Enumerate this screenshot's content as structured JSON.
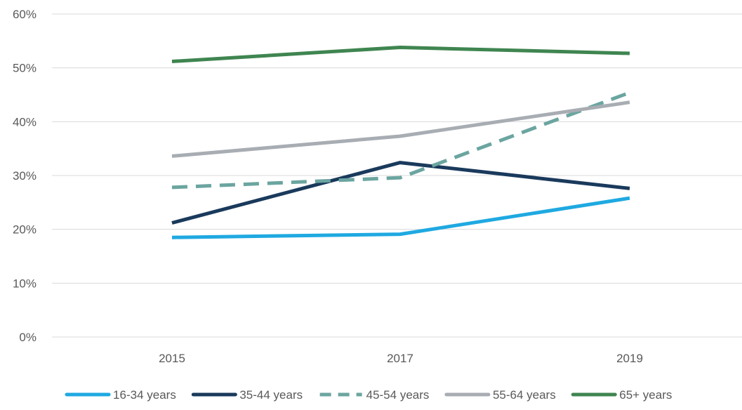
{
  "chart_data": {
    "type": "line",
    "x": [
      "2015",
      "2017",
      "2019"
    ],
    "ylim": [
      0,
      60
    ],
    "yticks": [
      "0%",
      "10%",
      "20%",
      "30%",
      "40%",
      "50%",
      "60%"
    ],
    "grid": true,
    "legend": "bottom",
    "series": [
      {
        "name": "16-34 years",
        "values": [
          18.5,
          19.1,
          25.8
        ],
        "color": "#1FA9E1",
        "dashed": false
      },
      {
        "name": "35-44 years",
        "values": [
          21.2,
          32.4,
          27.6
        ],
        "color": "#1A3A5C",
        "dashed": false
      },
      {
        "name": "45-54 years",
        "values": [
          27.8,
          29.6,
          45.4
        ],
        "color": "#6BA5A0",
        "dashed": true
      },
      {
        "name": "55-64 years",
        "values": [
          33.6,
          37.3,
          43.6
        ],
        "color": "#A8ADB3",
        "dashed": false
      },
      {
        "name": "65+ years",
        "values": [
          51.2,
          53.8,
          52.7
        ],
        "color": "#3F8550",
        "dashed": false
      }
    ]
  }
}
